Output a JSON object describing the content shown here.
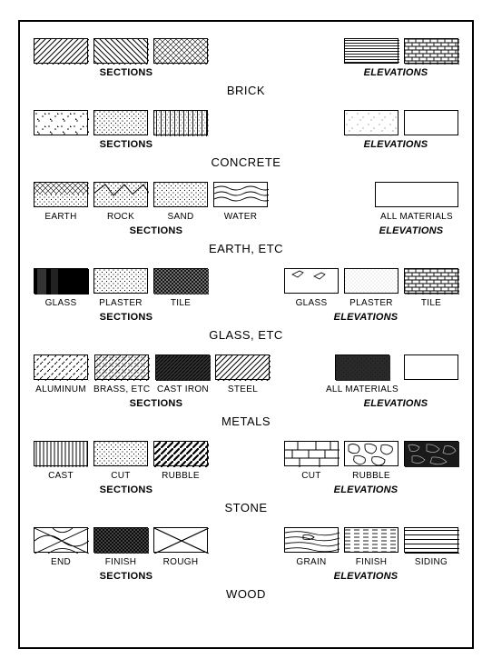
{
  "colors": {
    "border": "#000000",
    "background": "#ffffff",
    "hatch": "#000000",
    "light": "#dcdcdc"
  },
  "typography": {
    "label_fontsize": 10,
    "sublabel_fontsize": 11,
    "title_fontsize": 13,
    "family": "sans-serif"
  },
  "swatch": {
    "width": 60,
    "height": 28,
    "border_width": 1.5
  },
  "labels": {
    "sections": "SECTIONS",
    "elevations": "ELEVATIONS"
  },
  "groups": [
    {
      "title": "BRICK",
      "sections": [
        {
          "pattern": "diag45",
          "label": ""
        },
        {
          "pattern": "diag45-rev",
          "label": ""
        },
        {
          "pattern": "cross45-light",
          "label": ""
        }
      ],
      "elevations": [
        {
          "pattern": "horiz-lines",
          "label": ""
        },
        {
          "pattern": "brick-course",
          "label": ""
        }
      ]
    },
    {
      "title": "CONCRETE",
      "sections": [
        {
          "pattern": "speckle-tri",
          "label": ""
        },
        {
          "pattern": "dots-fine",
          "label": ""
        },
        {
          "pattern": "vert-dots",
          "label": ""
        }
      ],
      "elevations": [
        {
          "pattern": "speckle-light",
          "label": ""
        },
        {
          "pattern": "blank",
          "label": ""
        }
      ]
    },
    {
      "title": "EARTH, ETC",
      "sections": [
        {
          "pattern": "earth",
          "label": "EARTH"
        },
        {
          "pattern": "rock",
          "label": "ROCK"
        },
        {
          "pattern": "dots-fine",
          "label": "SAND"
        },
        {
          "pattern": "water",
          "label": "WATER"
        }
      ],
      "elevations": [
        {
          "pattern": "blank",
          "label": "ALL MATERIALS",
          "wide": true
        }
      ]
    },
    {
      "title": "GLASS, ETC",
      "sections": [
        {
          "pattern": "glass-sec",
          "label": "GLASS"
        },
        {
          "pattern": "dots-fine",
          "label": "PLASTER"
        },
        {
          "pattern": "cross45-dense",
          "label": "TILE"
        }
      ],
      "elevations": [
        {
          "pattern": "glass-elev",
          "label": "GLASS"
        },
        {
          "pattern": "dots-vfine",
          "label": "PLASTER"
        },
        {
          "pattern": "brick-course",
          "label": "TILE"
        }
      ]
    },
    {
      "title": "METALS",
      "sections": [
        {
          "pattern": "diag45-dashed",
          "label": "ALUMINUM"
        },
        {
          "pattern": "diag45-dotted",
          "label": "BRASS, ETC"
        },
        {
          "pattern": "diag45-dense",
          "label": "CAST IRON"
        },
        {
          "pattern": "diag45",
          "label": "STEEL"
        }
      ],
      "elevations": [
        {
          "pattern": "metal-solid",
          "label": "ALL MATERIALS",
          "wide_pair": true
        },
        {
          "pattern": "blank",
          "label": ""
        }
      ]
    },
    {
      "title": "STONE",
      "sections": [
        {
          "pattern": "vert-lines",
          "label": "CAST"
        },
        {
          "pattern": "dots-fine",
          "label": "CUT"
        },
        {
          "pattern": "diag45-bold",
          "label": "RUBBLE"
        }
      ],
      "elevations": [
        {
          "pattern": "ashlar",
          "label": "CUT"
        },
        {
          "pattern": "rubble-elev",
          "label": "RUBBLE"
        },
        {
          "pattern": "rubble-dark",
          "label": ""
        }
      ]
    },
    {
      "title": "WOOD",
      "sections": [
        {
          "pattern": "endgrain",
          "label": "END"
        },
        {
          "pattern": "cross45-dense2",
          "label": "FINISH"
        },
        {
          "pattern": "diag-x",
          "label": "ROUGH"
        }
      ],
      "elevations": [
        {
          "pattern": "grain",
          "label": "GRAIN"
        },
        {
          "pattern": "horiz-dash",
          "label": "FINISH"
        },
        {
          "pattern": "siding",
          "label": "SIDING"
        }
      ]
    }
  ]
}
